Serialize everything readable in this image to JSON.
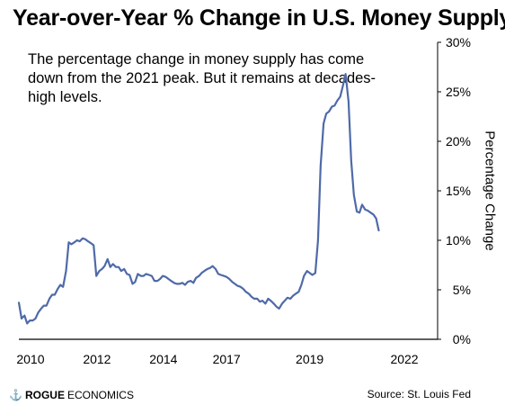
{
  "title": "Year-over-Year % Change in U.S. Money Supply",
  "annotation": "The percentage change in money supply has come down from the 2021 peak. But it remains at decades-high levels.",
  "branding": {
    "mark": "⚓",
    "rogue": "ROGUE",
    "economics": "ECONOMICS"
  },
  "source": "Source: St. Louis Fed",
  "chart_data": {
    "type": "line",
    "title": "Year-over-Year % Change in U.S. Money Supply",
    "xlabel": "",
    "ylabel": "Percentage Change",
    "line_color": "#4f6aa8",
    "ylim": [
      0,
      30
    ],
    "y_ticks": [
      0,
      5,
      10,
      15,
      20,
      25,
      30
    ],
    "y_tick_labels": [
      "0%",
      "5%",
      "10%",
      "15%",
      "20%",
      "25%",
      "30%"
    ],
    "xlim": [
      2010.0,
      2022.6
    ],
    "x_tick_labels": [
      {
        "value": 2010.35,
        "label": "2010"
      },
      {
        "value": 2012.35,
        "label": "2012"
      },
      {
        "value": 2014.35,
        "label": "2014"
      },
      {
        "value": 2016.25,
        "label": "2017"
      },
      {
        "value": 2018.75,
        "label": "2019"
      },
      {
        "value": 2021.6,
        "label": "2022"
      }
    ],
    "grid": false,
    "legend": "none",
    "series": [
      {
        "x": [
          2010.0,
          2010.08,
          2010.17,
          2010.25,
          2010.33,
          2010.42,
          2010.5,
          2010.58,
          2010.67,
          2010.75,
          2010.83,
          2010.92,
          2011.0,
          2011.08,
          2011.17,
          2011.25,
          2011.33,
          2011.42,
          2011.5,
          2011.58,
          2011.67,
          2011.75,
          2011.83,
          2011.92,
          2012.0,
          2012.08,
          2012.17,
          2012.25,
          2012.33,
          2012.42,
          2012.5,
          2012.58,
          2012.67,
          2012.75,
          2012.83,
          2012.92,
          2013.0,
          2013.08,
          2013.17,
          2013.25,
          2013.33,
          2013.42,
          2013.5,
          2013.58,
          2013.67,
          2013.75,
          2013.83,
          2013.92,
          2014.0,
          2014.08,
          2014.17,
          2014.25,
          2014.33,
          2014.42,
          2014.5,
          2014.58,
          2014.67,
          2014.75,
          2014.83,
          2014.92,
          2015.0,
          2015.08,
          2015.17,
          2015.25,
          2015.33,
          2015.42,
          2015.5,
          2015.58,
          2015.67,
          2015.75,
          2015.83,
          2015.92,
          2016.0,
          2016.08,
          2016.17,
          2016.25,
          2016.33,
          2016.42,
          2016.5,
          2016.58,
          2016.67,
          2016.75,
          2016.83,
          2016.92,
          2017.0,
          2017.08,
          2017.17,
          2017.25,
          2017.33,
          2017.42,
          2017.5,
          2017.58,
          2017.67,
          2017.75,
          2017.83,
          2017.92,
          2018.0,
          2018.08,
          2018.17,
          2018.25,
          2018.33,
          2018.42,
          2018.5,
          2018.58,
          2018.67,
          2018.75,
          2018.83,
          2018.92,
          2019.0,
          2019.08,
          2019.17,
          2019.25,
          2019.33,
          2019.42,
          2019.5,
          2019.58,
          2019.67,
          2019.75,
          2019.83,
          2019.92,
          2020.0,
          2020.08,
          2020.17,
          2020.25,
          2020.33,
          2020.42,
          2020.5,
          2020.58
        ],
        "y": [
          3.7,
          2.1,
          2.4,
          1.6,
          1.9,
          1.9,
          2.1,
          2.7,
          3.1,
          3.4,
          3.4,
          4.1,
          4.5,
          4.5,
          5.1,
          5.5,
          5.3,
          6.9,
          9.8,
          9.6,
          9.8,
          10.0,
          9.9,
          10.2,
          10.1,
          9.9,
          9.7,
          9.5,
          6.4,
          6.9,
          7.1,
          7.4,
          8.1,
          7.3,
          7.6,
          7.3,
          7.3,
          6.9,
          7.1,
          6.6,
          6.5,
          5.6,
          5.8,
          6.6,
          6.4,
          6.4,
          6.6,
          6.5,
          6.4,
          5.9,
          5.9,
          6.1,
          6.4,
          6.3,
          6.1,
          5.9,
          5.7,
          5.6,
          5.6,
          5.7,
          5.5,
          5.8,
          5.9,
          5.7,
          6.2,
          6.4,
          6.7,
          6.9,
          7.1,
          7.2,
          7.4,
          7.1,
          6.6,
          6.5,
          6.4,
          6.3,
          6.1,
          5.8,
          5.6,
          5.4,
          5.3,
          5.1,
          4.8,
          4.6,
          4.3,
          4.1,
          4.1,
          3.8,
          3.9,
          3.6,
          4.1,
          3.9,
          3.6,
          3.3,
          3.1,
          3.6,
          3.9,
          4.2,
          4.1,
          4.4,
          4.6,
          4.8,
          5.5,
          6.4,
          6.9,
          6.7,
          6.5,
          6.7,
          10.0,
          17.5,
          21.8,
          22.8,
          23.0,
          23.5,
          23.6,
          24.1,
          24.5,
          25.6,
          26.8,
          24.0,
          18.1,
          14.6,
          12.9,
          12.8,
          13.6,
          13.1,
          13.0,
          12.8
        ],
        "tail": {
          "x": [
            2020.67,
            2020.75,
            2020.83
          ],
          "y": [
            12.6,
            12.2,
            11.0
          ]
        }
      }
    ]
  }
}
